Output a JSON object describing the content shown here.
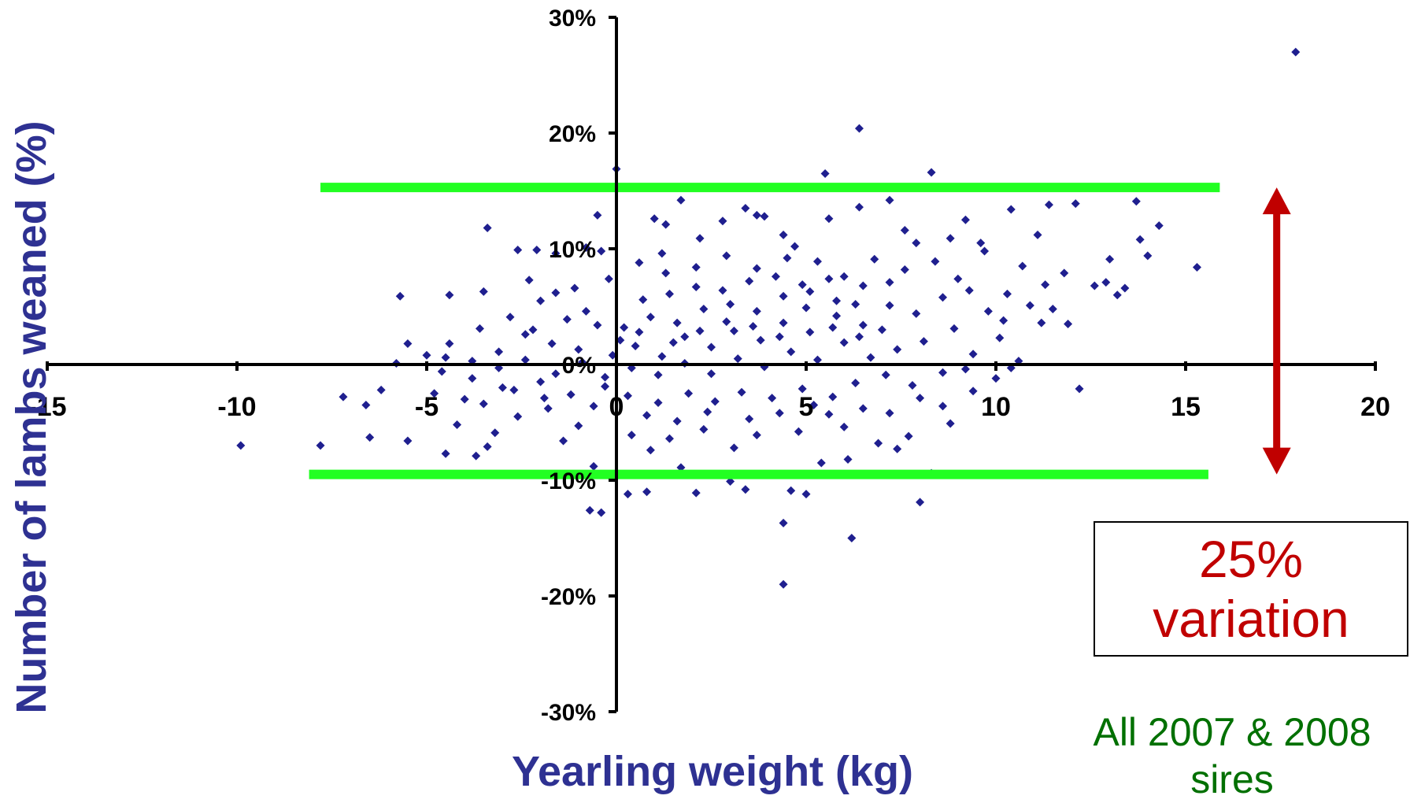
{
  "colors": {
    "points": "#1f1f8f",
    "axis_title": "#2e3192",
    "band": "#22ff22",
    "arrow": "#c00000",
    "annotation_text": "#c00000",
    "footnote": "#007000"
  },
  "annotation": {
    "line1": "25%",
    "line2": "variation"
  },
  "footnote": {
    "line1": "All 2007 & 2008",
    "line2": "sires"
  },
  "chart_data": {
    "type": "scatter",
    "title": "",
    "xlabel": "Yearling weight (kg)",
    "ylabel": "Number of lambs weaned (%)",
    "xlim": [
      -15,
      20
    ],
    "ylim": [
      -30,
      30
    ],
    "x_ticks": [
      -15,
      -10,
      -5,
      0,
      5,
      10,
      15,
      20
    ],
    "x_tick_labels": [
      "-15",
      "-10",
      "-5",
      "0",
      "5",
      "10",
      "15",
      "20"
    ],
    "y_ticks": [
      -30,
      -20,
      -10,
      0,
      10,
      20,
      30
    ],
    "y_tick_labels": [
      "-30%",
      "-20%",
      "-10%",
      "0%",
      "10%",
      "20%",
      "30%"
    ],
    "grid": false,
    "series": [
      {
        "marker": "diamond",
        "points": [
          [
            17.9,
            27
          ],
          [
            6.4,
            20.4
          ],
          [
            0,
            16.9
          ],
          [
            5.5,
            16.5
          ],
          [
            8.3,
            16.6
          ],
          [
            13.7,
            14.1
          ],
          [
            14.3,
            12
          ],
          [
            13.8,
            10.8
          ],
          [
            12.1,
            13.9
          ],
          [
            11.4,
            13.8
          ],
          [
            11.1,
            11.2
          ],
          [
            10.4,
            13.4
          ],
          [
            9.2,
            12.5
          ],
          [
            9.6,
            10.5
          ],
          [
            15.3,
            8.4
          ],
          [
            13.0,
            9.1
          ],
          [
            12.6,
            6.8
          ],
          [
            13.4,
            6.6
          ],
          [
            13.2,
            6.0
          ],
          [
            11.8,
            7.9
          ],
          [
            11.3,
            6.9
          ],
          [
            11.2,
            3.6
          ],
          [
            10.9,
            5.1
          ],
          [
            11.5,
            4.8
          ],
          [
            10.6,
            0.3
          ],
          [
            10.4,
            -0.3
          ],
          [
            10.2,
            3.8
          ],
          [
            12.2,
            -2.1
          ],
          [
            9.2,
            -0.4
          ],
          [
            8.8,
            -5.1
          ],
          [
            8.3,
            -9.4
          ],
          [
            8.0,
            -11.9
          ],
          [
            6.2,
            -15
          ],
          [
            4.4,
            -13.7
          ],
          [
            4.4,
            -19
          ],
          [
            4.6,
            -10.9
          ],
          [
            5.0,
            -11.2
          ],
          [
            -9.9,
            -7
          ],
          [
            -7.8,
            -7
          ],
          [
            -6.5,
            -6.3
          ],
          [
            -5.5,
            -6.6
          ],
          [
            -4.5,
            -7.7
          ],
          [
            -3.7,
            -7.9
          ],
          [
            -3.4,
            -7.1
          ],
          [
            -7.2,
            -2.8
          ],
          [
            -6.6,
            -3.5
          ],
          [
            -6.2,
            -2.2
          ],
          [
            -5.8,
            0.1
          ],
          [
            -5.5,
            1.8
          ],
          [
            -5.7,
            5.9
          ],
          [
            -4.4,
            6.0
          ],
          [
            -3.5,
            6.3
          ],
          [
            -3.4,
            11.8
          ],
          [
            -2.6,
            9.9
          ],
          [
            -2.3,
            7.3
          ],
          [
            -2.1,
            9.9
          ],
          [
            -1.6,
            6.2
          ],
          [
            -1.6,
            9.6
          ],
          [
            -0.8,
            10.1
          ],
          [
            -0.5,
            12.9
          ],
          [
            -0.4,
            9.8
          ],
          [
            1.0,
            12.6
          ],
          [
            1.3,
            12.1
          ],
          [
            1.7,
            14.2
          ],
          [
            1.2,
            9.6
          ],
          [
            2.2,
            10.9
          ],
          [
            2.8,
            12.4
          ],
          [
            3.4,
            13.5
          ],
          [
            3.7,
            12.9
          ],
          [
            3.9,
            12.8
          ],
          [
            4.4,
            11.2
          ],
          [
            4.7,
            10.2
          ],
          [
            5.6,
            12.6
          ],
          [
            6.4,
            13.6
          ],
          [
            7.2,
            14.2
          ],
          [
            7.6,
            11.6
          ],
          [
            7.9,
            10.5
          ],
          [
            8.8,
            10.9
          ],
          [
            9.7,
            9.8
          ],
          [
            -0.4,
            -12.8
          ],
          [
            -0.7,
            -12.6
          ],
          [
            0.3,
            -11.2
          ],
          [
            0.8,
            -11
          ],
          [
            2.1,
            -11.1
          ],
          [
            3.0,
            -10.1
          ],
          [
            3.4,
            -10.8
          ],
          [
            6.9,
            -6.8
          ],
          [
            7.4,
            -7.3
          ],
          [
            7.7,
            -6.2
          ],
          [
            5.4,
            -8.5
          ],
          [
            6.1,
            -8.2
          ],
          [
            -1.4,
            -6.6
          ],
          [
            -0.6,
            -8.8
          ],
          [
            1.7,
            -8.9
          ],
          [
            0.9,
            -7.4
          ],
          [
            -3.2,
            -5.9
          ],
          [
            -4.2,
            -5.2
          ],
          [
            -2.6,
            -4.5
          ],
          [
            -1.8,
            -3.8
          ],
          [
            -1.0,
            -5.3
          ],
          [
            0.4,
            -6.1
          ],
          [
            1.4,
            -6.4
          ],
          [
            2.3,
            -5.6
          ],
          [
            3.1,
            -7.2
          ],
          [
            3.7,
            -6.1
          ],
          [
            4.8,
            -5.8
          ],
          [
            5.6,
            -4.3
          ],
          [
            6.5,
            -3.8
          ],
          [
            7.2,
            -4.2
          ],
          [
            8.0,
            -2.9
          ],
          [
            8.6,
            -3.6
          ],
          [
            9.4,
            -2.3
          ],
          [
            -4.8,
            -2.5
          ],
          [
            -4.0,
            -3.0
          ],
          [
            -3.0,
            -2.0
          ],
          [
            -2.0,
            -1.5
          ],
          [
            -1.2,
            -2.6
          ],
          [
            -0.3,
            -1.1
          ],
          [
            0.3,
            -2.7
          ],
          [
            1.1,
            -3.3
          ],
          [
            1.9,
            -2.5
          ],
          [
            2.6,
            -3.2
          ],
          [
            3.3,
            -2.4
          ],
          [
            4.1,
            -2.9
          ],
          [
            4.9,
            -2.1
          ],
          [
            5.7,
            -2.8
          ],
          [
            6.3,
            -1.6
          ],
          [
            7.1,
            -0.9
          ],
          [
            7.8,
            -1.8
          ],
          [
            8.6,
            -0.7
          ],
          [
            9.4,
            0.9
          ],
          [
            10.1,
            2.3
          ],
          [
            9.8,
            4.6
          ],
          [
            10.3,
            6.1
          ],
          [
            9.0,
            7.4
          ],
          [
            8.4,
            8.9
          ],
          [
            7.6,
            8.2
          ],
          [
            6.8,
            9.1
          ],
          [
            6.0,
            7.6
          ],
          [
            5.3,
            8.9
          ],
          [
            4.5,
            9.2
          ],
          [
            3.7,
            8.3
          ],
          [
            2.9,
            9.4
          ],
          [
            2.1,
            8.4
          ],
          [
            1.3,
            7.9
          ],
          [
            0.6,
            8.8
          ],
          [
            -0.2,
            7.4
          ],
          [
            -1.1,
            6.6
          ],
          [
            -2.0,
            5.5
          ],
          [
            -2.8,
            4.1
          ],
          [
            -3.6,
            3.1
          ],
          [
            -4.4,
            1.8
          ],
          [
            -5.0,
            0.8
          ],
          [
            -4.6,
            -0.6
          ],
          [
            -3.8,
            -1.2
          ],
          [
            -3.1,
            -0.3
          ],
          [
            -2.4,
            0.4
          ],
          [
            -1.6,
            -0.8
          ],
          [
            -0.9,
            0.2
          ],
          [
            -0.1,
            0.8
          ],
          [
            0.5,
            1.6
          ],
          [
            1.2,
            0.7
          ],
          [
            1.8,
            2.4
          ],
          [
            2.5,
            1.5
          ],
          [
            3.1,
            2.9
          ],
          [
            3.8,
            2.1
          ],
          [
            4.4,
            3.6
          ],
          [
            5.1,
            2.8
          ],
          [
            5.8,
            4.2
          ],
          [
            6.5,
            3.4
          ],
          [
            7.2,
            5.1
          ],
          [
            7.9,
            4.4
          ],
          [
            8.6,
            5.8
          ],
          [
            9.3,
            6.4
          ],
          [
            8.9,
            3.1
          ],
          [
            8.1,
            2.0
          ],
          [
            7.4,
            1.3
          ],
          [
            6.7,
            0.6
          ],
          [
            6.0,
            1.9
          ],
          [
            5.3,
            0.4
          ],
          [
            4.6,
            1.1
          ],
          [
            3.9,
            -0.2
          ],
          [
            3.2,
            0.5
          ],
          [
            2.5,
            -0.8
          ],
          [
            1.8,
            0.1
          ],
          [
            1.1,
            -0.9
          ],
          [
            0.4,
            -0.3
          ],
          [
            -0.3,
            -1.9
          ],
          [
            -1.0,
            1.3
          ],
          [
            -1.7,
            1.8
          ],
          [
            -2.4,
            2.6
          ],
          [
            -3.1,
            1.1
          ],
          [
            -3.8,
            0.3
          ],
          [
            -4.5,
            0.6
          ],
          [
            0.2,
            3.2
          ],
          [
            0.9,
            4.1
          ],
          [
            1.6,
            3.6
          ],
          [
            2.3,
            4.8
          ],
          [
            3.0,
            5.2
          ],
          [
            3.7,
            4.6
          ],
          [
            4.4,
            5.9
          ],
          [
            5.1,
            6.3
          ],
          [
            5.8,
            5.5
          ],
          [
            6.5,
            6.8
          ],
          [
            7.2,
            7.1
          ],
          [
            0.7,
            5.6
          ],
          [
            1.4,
            6.1
          ],
          [
            2.1,
            6.7
          ],
          [
            2.8,
            6.4
          ],
          [
            3.5,
            7.2
          ],
          [
            4.2,
            7.6
          ],
          [
            4.9,
            6.9
          ],
          [
            5.6,
            7.4
          ],
          [
            6.3,
            5.2
          ],
          [
            7.0,
            3.0
          ],
          [
            0.1,
            2.1
          ],
          [
            0.6,
            2.8
          ],
          [
            1.5,
            1.9
          ],
          [
            2.2,
            2.9
          ],
          [
            2.9,
            3.7
          ],
          [
            3.6,
            3.3
          ],
          [
            4.3,
            2.4
          ],
          [
            5.0,
            4.9
          ],
          [
            5.7,
            3.2
          ],
          [
            6.4,
            2.4
          ],
          [
            -0.5,
            3.4
          ],
          [
            -1.3,
            3.9
          ],
          [
            -2.2,
            3.0
          ],
          [
            -0.8,
            4.6
          ],
          [
            -1.9,
            -2.9
          ],
          [
            -2.7,
            -2.2
          ],
          [
            -3.5,
            -3.4
          ],
          [
            -0.6,
            -3.6
          ],
          [
            0.8,
            -4.4
          ],
          [
            1.6,
            -4.9
          ],
          [
            2.4,
            -4.1
          ],
          [
            3.5,
            -4.7
          ],
          [
            4.3,
            -4.2
          ],
          [
            5.2,
            -3.5
          ],
          [
            6.0,
            -5.4
          ],
          [
            12.9,
            7.1
          ],
          [
            14.0,
            9.4
          ],
          [
            10.7,
            8.5
          ],
          [
            11.9,
            3.5
          ],
          [
            10.0,
            -1.2
          ]
        ]
      }
    ],
    "reference_lines": [
      {
        "y": 15.3,
        "x_from": -7.8,
        "x_to": 15.9
      },
      {
        "y": -9.5,
        "x_from": -8.1,
        "x_to": 15.6
      }
    ],
    "range_arrow": {
      "x": 17.4,
      "from": -9.5,
      "to": 15.3
    }
  }
}
